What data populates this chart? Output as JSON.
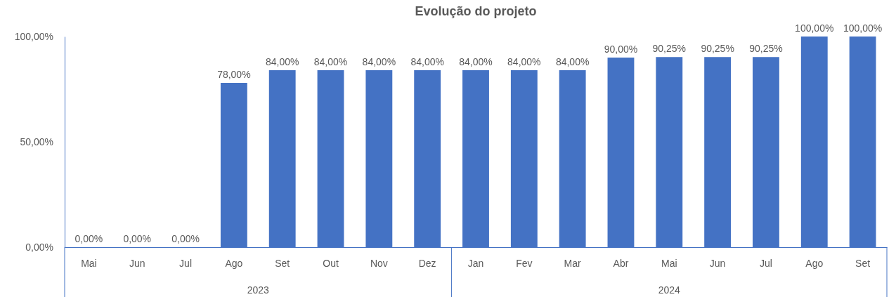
{
  "chart_data": {
    "type": "bar",
    "title": "Evolução do projeto",
    "categories": [
      "Mai",
      "Jun",
      "Jul",
      "Ago",
      "Set",
      "Out",
      "Nov",
      "Dez",
      "Jan",
      "Fev",
      "Mar",
      "Abr",
      "Mai",
      "Jun",
      "Jul",
      "Ago",
      "Set"
    ],
    "values": [
      0,
      0,
      0,
      78,
      84,
      84,
      84,
      84,
      84,
      84,
      84,
      90,
      90.25,
      90.25,
      90.25,
      100,
      100
    ],
    "value_labels": [
      "0,00%",
      "0,00%",
      "0,00%",
      "78,00%",
      "84,00%",
      "84,00%",
      "84,00%",
      "84,00%",
      "84,00%",
      "84,00%",
      "84,00%",
      "90,00%",
      "90,25%",
      "90,25%",
      "90,25%",
      "100,00%",
      "100,00%"
    ],
    "color": "#4472c4",
    "ylim": [
      0,
      100
    ],
    "yticks": [
      {
        "value": 0,
        "label": "0,00%"
      },
      {
        "value": 50,
        "label": "50,00%"
      },
      {
        "value": 100,
        "label": "100,00%"
      }
    ],
    "grid": false,
    "annotations": [
      "2023",
      "2024"
    ]
  }
}
